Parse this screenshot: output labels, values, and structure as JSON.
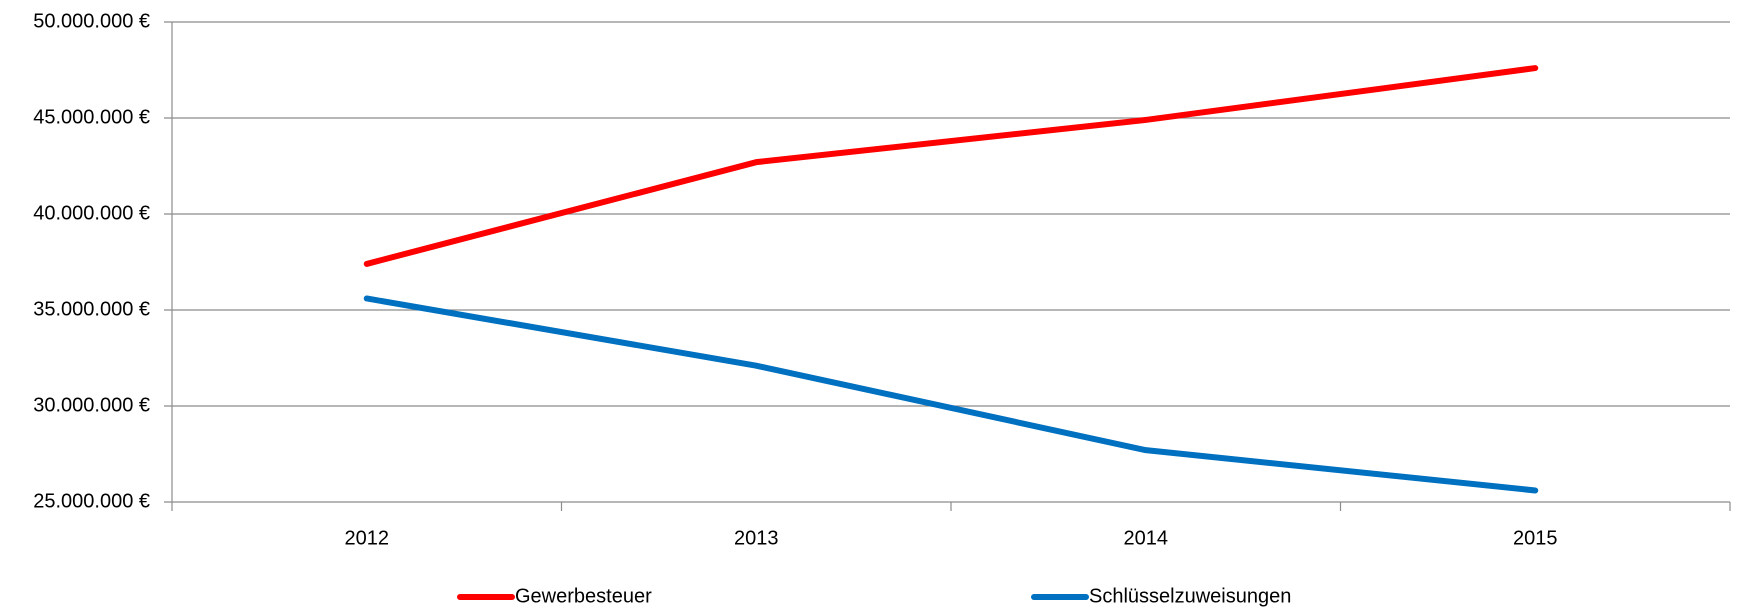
{
  "chart_data": {
    "type": "line",
    "categories": [
      "2012",
      "2013",
      "2014",
      "2015"
    ],
    "series": [
      {
        "name": "Gewerbesteuer",
        "color": "#ff0000",
        "values": [
          37400000,
          42700000,
          44900000,
          47600000
        ]
      },
      {
        "name": "Schlüsselzuweisungen",
        "color": "#0070c0",
        "values": [
          35600000,
          32100000,
          27700000,
          25600000
        ]
      }
    ],
    "ylim": [
      25000000,
      50000000
    ],
    "yticks": [
      {
        "value": 25000000,
        "label": "25.000.000 €"
      },
      {
        "value": 30000000,
        "label": "30.000.000 €"
      },
      {
        "value": 35000000,
        "label": "35.000.000 €"
      },
      {
        "value": 40000000,
        "label": "40.000.000 €"
      },
      {
        "value": 45000000,
        "label": "45.000.000 €"
      },
      {
        "value": 50000000,
        "label": "50.000.000 €"
      }
    ],
    "grid": true,
    "legend": "bottom"
  }
}
